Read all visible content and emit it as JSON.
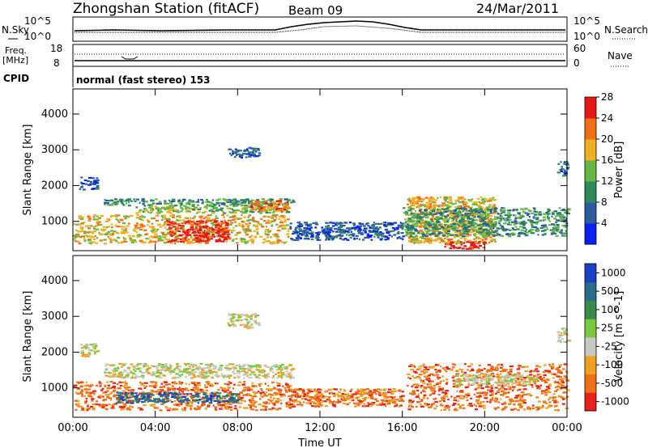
{
  "header": {
    "station": "Zhongshan Station (fitACF)",
    "beam": "Beam 09",
    "date": "24/Mar/2011"
  },
  "noise_panel": {
    "left_label": "N.Sky",
    "right_label": "N.Search",
    "left_ticks": [
      "10^5",
      "10^0"
    ],
    "right_ticks": [
      "10^5",
      "10^0"
    ]
  },
  "freq_panel": {
    "left_label_1": "Freq.",
    "left_label_2": "[MHz]",
    "right_label": "Nave",
    "left_ticks": [
      "18",
      "8"
    ],
    "right_ticks": [
      "60",
      "0"
    ]
  },
  "cpid": {
    "label": "CPID",
    "text": "normal (fast stereo) 153"
  },
  "chart_data": [
    {
      "type": "heatmap",
      "title": "",
      "xlabel": "",
      "ylabel": "Slant Range [km]",
      "x_ticks": [
        "00:00",
        "04:00",
        "08:00",
        "12:00",
        "16:00",
        "20:00",
        "00:00"
      ],
      "xlim": [
        0,
        24
      ],
      "y_ticks": [
        "1000",
        "2000",
        "3000",
        "4000"
      ],
      "ylim": [
        180,
        4700
      ],
      "colorbar": {
        "label": "Power [dB]",
        "ticks": [
          "4",
          "8",
          "12",
          "16",
          "20",
          "24",
          "28"
        ],
        "range": [
          0,
          32
        ],
        "colors": [
          "#0a1ff0",
          "#2a5aa0",
          "#2f8a5a",
          "#66b845",
          "#f0b020",
          "#f07018",
          "#e81818"
        ]
      },
      "echo_regions_km_vs_hours": [
        {
          "t": [
            0.3,
            1.2
          ],
          "r": [
            1900,
            2250
          ],
          "level": 1
        },
        {
          "t": [
            1.5,
            10.7
          ],
          "r": [
            1450,
            1650
          ],
          "level": 2
        },
        {
          "t": [
            3.0,
            10.5
          ],
          "r": [
            1250,
            1450
          ],
          "level": 3
        },
        {
          "t": [
            0.0,
            10.5
          ],
          "r": [
            400,
            1200
          ],
          "level": 4
        },
        {
          "t": [
            4.5,
            7.5
          ],
          "r": [
            450,
            1050
          ],
          "level": 6
        },
        {
          "t": [
            8.5,
            10.5
          ],
          "r": [
            1300,
            1600
          ],
          "level": 5
        },
        {
          "t": [
            7.5,
            9.0
          ],
          "r": [
            2800,
            3100
          ],
          "level": 1
        },
        {
          "t": [
            10.5,
            16.0
          ],
          "r": [
            500,
            1000
          ],
          "level": 1
        },
        {
          "t": [
            16.2,
            20.5
          ],
          "r": [
            400,
            1700
          ],
          "level": 4
        },
        {
          "t": [
            18.0,
            20.0
          ],
          "r": [
            250,
            450
          ],
          "level": 6
        },
        {
          "t": [
            16.0,
            24.0
          ],
          "r": [
            600,
            1400
          ],
          "level": 2
        },
        {
          "t": [
            23.5,
            24.0
          ],
          "r": [
            2300,
            2700
          ],
          "level": 1
        }
      ]
    },
    {
      "type": "heatmap",
      "title": "",
      "xlabel": "Time UT",
      "ylabel": "Slant Range [km]",
      "x_ticks": [
        "00:00",
        "04:00",
        "08:00",
        "12:00",
        "16:00",
        "20:00",
        "00:00"
      ],
      "xlim": [
        0,
        24
      ],
      "y_ticks": [
        "1000",
        "2000",
        "3000",
        "4000"
      ],
      "ylim": [
        180,
        4700
      ],
      "colorbar": {
        "label": "Velocity [m s^-1]",
        "ticks": [
          "1000",
          "500",
          "100",
          "25",
          "-25",
          "-100",
          "-500",
          "-1000"
        ],
        "range": [
          -1200,
          1200
        ],
        "colors": [
          "#1a3fc0",
          "#2a6a8a",
          "#3a8a50",
          "#7ac840",
          "#c8c8c0",
          "#f0a020",
          "#f07018",
          "#e82018"
        ]
      },
      "echo_regions_km_vs_hours": [
        {
          "t": [
            0.3,
            1.2
          ],
          "r": [
            1900,
            2250
          ],
          "level": 4
        },
        {
          "t": [
            1.5,
            10.7
          ],
          "r": [
            1300,
            1700
          ],
          "level": 4
        },
        {
          "t": [
            0.0,
            10.5
          ],
          "r": [
            400,
            1200
          ],
          "level": 6
        },
        {
          "t": [
            2.0,
            8.0
          ],
          "r": [
            600,
            900
          ],
          "level": 1
        },
        {
          "t": [
            7.5,
            9.0
          ],
          "r": [
            2700,
            3100
          ],
          "level": 4
        },
        {
          "t": [
            10.5,
            16.0
          ],
          "r": [
            500,
            1000
          ],
          "level": 6
        },
        {
          "t": [
            16.2,
            24.0
          ],
          "r": [
            400,
            1700
          ],
          "level": 6
        },
        {
          "t": [
            18.5,
            22.5
          ],
          "r": [
            1100,
            1400
          ],
          "level": 4
        },
        {
          "t": [
            23.5,
            24.0
          ],
          "r": [
            2300,
            2700
          ],
          "level": 4
        }
      ]
    }
  ]
}
